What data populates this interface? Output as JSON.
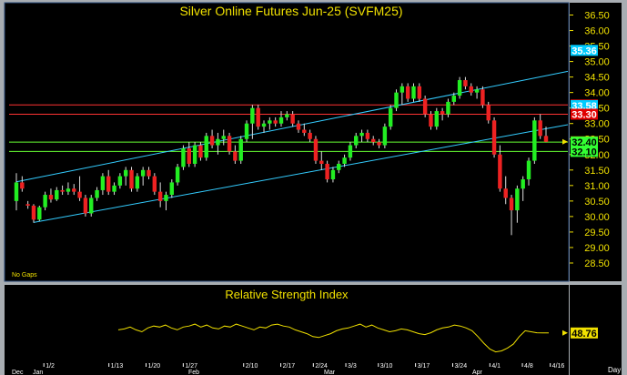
{
  "chart_data": [
    {
      "type": "candlestick",
      "title": "Silver  Online  Futures  Jun-25  (SVFM25)",
      "note": "No Gaps",
      "y_ticks": [
        "36.50",
        "36.00",
        "35.50",
        "35.00",
        "34.50",
        "34.00",
        "33.50",
        "33.00",
        "32.50",
        "32.00",
        "31.50",
        "31.00",
        "30.50",
        "30.00",
        "29.50",
        "29.00",
        "28.50"
      ],
      "ylim": [
        28.0,
        36.75
      ],
      "price_labels": [
        {
          "text": "35.36",
          "value": 35.36,
          "bg": "#00ccff",
          "fg": "#ffffff"
        },
        {
          "text": "33.60",
          "value": 33.6,
          "bg": "#e00000",
          "fg": "#ffffff"
        },
        {
          "text": "33.58",
          "value": 33.58,
          "bg": "#00ccff",
          "fg": "#ffffff"
        },
        {
          "text": "33.30",
          "value": 33.3,
          "bg": "#e00000",
          "fg": "#ffffff"
        },
        {
          "text": "32.41",
          "value": 32.41,
          "bg": "#f0e000",
          "fg": "#000000"
        },
        {
          "text": "32.40",
          "value": 32.4,
          "bg": "#33ff33",
          "fg": "#000000"
        },
        {
          "text": "32.10",
          "value": 32.1,
          "bg": "#33ff33",
          "fg": "#000000"
        }
      ],
      "horizontal_lines": [
        {
          "value": 33.6,
          "color": "#ff3333"
        },
        {
          "value": 33.3,
          "color": "#ff3333"
        },
        {
          "value": 32.4,
          "color": "#66ff33"
        },
        {
          "value": 32.1,
          "color": "#66ff33"
        }
      ],
      "channel_lines": [
        {
          "from": [
            0,
            31.12
          ],
          "to": [
            114,
            35.36
          ],
          "color": "#33ccff"
        },
        {
          "from": [
            3,
            29.81
          ],
          "to": [
            114,
            33.58
          ],
          "color": "#33ccff"
        }
      ],
      "candles": [
        [
          30.5,
          31.4,
          30.2,
          31.1
        ],
        [
          31.1,
          31.3,
          30.8,
          30.9
        ],
        [
          30.4,
          30.5,
          30.25,
          30.35
        ],
        [
          30.35,
          30.4,
          29.8,
          29.9
        ],
        [
          29.9,
          30.35,
          29.85,
          30.3
        ],
        [
          30.3,
          30.8,
          30.2,
          30.7
        ],
        [
          30.7,
          30.9,
          30.45,
          30.55
        ],
        [
          30.55,
          30.95,
          30.5,
          30.85
        ],
        [
          30.85,
          31.0,
          30.7,
          30.8
        ],
        [
          30.8,
          31.1,
          30.7,
          30.9
        ],
        [
          30.9,
          31.05,
          30.7,
          30.8
        ],
        [
          30.8,
          31.3,
          30.5,
          30.6
        ],
        [
          30.6,
          30.7,
          30.0,
          30.1
        ],
        [
          30.1,
          30.7,
          30.0,
          30.6
        ],
        [
          30.6,
          30.95,
          30.5,
          30.85
        ],
        [
          30.85,
          31.4,
          30.7,
          31.3
        ],
        [
          31.3,
          31.5,
          30.7,
          30.8
        ],
        [
          30.8,
          31.1,
          30.7,
          31.0
        ],
        [
          31.0,
          31.4,
          30.9,
          31.3
        ],
        [
          31.3,
          31.6,
          31.0,
          31.5
        ],
        [
          31.5,
          31.6,
          30.8,
          30.9
        ],
        [
          30.9,
          31.4,
          30.8,
          31.3
        ],
        [
          31.3,
          31.6,
          31.0,
          31.5
        ],
        [
          31.5,
          31.6,
          31.2,
          31.3
        ],
        [
          31.3,
          31.4,
          30.7,
          30.8
        ],
        [
          30.8,
          31.1,
          30.3,
          30.5
        ],
        [
          30.5,
          30.8,
          30.2,
          30.7
        ],
        [
          30.7,
          31.2,
          30.6,
          31.1
        ],
        [
          31.1,
          31.7,
          31.0,
          31.6
        ],
        [
          31.6,
          32.3,
          31.5,
          32.2
        ],
        [
          32.2,
          32.4,
          31.6,
          31.7
        ],
        [
          31.7,
          32.4,
          31.6,
          32.3
        ],
        [
          32.3,
          32.4,
          31.8,
          31.9
        ],
        [
          31.9,
          32.7,
          31.8,
          32.6
        ],
        [
          32.6,
          32.8,
          32.2,
          32.3
        ],
        [
          32.3,
          32.7,
          32.0,
          32.5
        ],
        [
          32.5,
          32.8,
          32.3,
          32.6
        ],
        [
          32.6,
          32.7,
          32.0,
          32.1
        ],
        [
          32.1,
          32.3,
          31.7,
          31.8
        ],
        [
          31.8,
          32.6,
          31.7,
          32.5
        ],
        [
          32.5,
          33.1,
          32.4,
          33.0
        ],
        [
          33.0,
          33.6,
          32.5,
          33.5
        ],
        [
          33.5,
          33.6,
          32.8,
          32.9
        ],
        [
          32.9,
          33.1,
          32.7,
          33.0
        ],
        [
          33.0,
          33.2,
          32.8,
          33.1
        ],
        [
          33.1,
          33.2,
          32.9,
          33.0
        ],
        [
          33.0,
          33.4,
          32.9,
          33.2
        ],
        [
          33.2,
          33.4,
          33.1,
          33.3
        ],
        [
          33.3,
          33.4,
          32.9,
          33.0
        ],
        [
          33.0,
          33.1,
          32.7,
          32.8
        ],
        [
          32.8,
          33.0,
          32.6,
          32.7
        ],
        [
          32.7,
          32.8,
          32.4,
          32.5
        ],
        [
          32.5,
          32.6,
          31.7,
          31.8
        ],
        [
          31.8,
          32.1,
          31.5,
          31.7
        ],
        [
          31.7,
          31.8,
          31.1,
          31.2
        ],
        [
          31.2,
          31.6,
          31.1,
          31.5
        ],
        [
          31.5,
          31.8,
          31.4,
          31.7
        ],
        [
          31.7,
          32.0,
          31.6,
          31.9
        ],
        [
          31.9,
          32.4,
          31.8,
          32.3
        ],
        [
          32.3,
          32.7,
          32.2,
          32.6
        ],
        [
          32.6,
          32.8,
          32.4,
          32.7
        ],
        [
          32.7,
          32.8,
          32.4,
          32.5
        ],
        [
          32.5,
          32.6,
          32.3,
          32.4
        ],
        [
          32.4,
          32.5,
          32.2,
          32.3
        ],
        [
          32.3,
          33.0,
          32.2,
          32.9
        ],
        [
          32.9,
          33.6,
          32.8,
          33.5
        ],
        [
          33.5,
          34.1,
          33.4,
          34.0
        ],
        [
          34.0,
          34.3,
          33.6,
          34.2
        ],
        [
          34.2,
          34.3,
          33.7,
          33.8
        ],
        [
          33.8,
          34.3,
          33.7,
          34.2
        ],
        [
          34.2,
          34.3,
          33.7,
          33.8
        ],
        [
          33.8,
          33.9,
          33.2,
          33.3
        ],
        [
          33.3,
          33.4,
          32.8,
          32.9
        ],
        [
          32.9,
          33.5,
          32.8,
          33.4
        ],
        [
          33.4,
          33.5,
          33.1,
          33.3
        ],
        [
          33.3,
          33.8,
          33.2,
          33.7
        ],
        [
          33.7,
          34.0,
          33.6,
          33.9
        ],
        [
          33.9,
          34.5,
          33.8,
          34.4
        ],
        [
          34.4,
          34.5,
          34.1,
          34.2
        ],
        [
          34.2,
          34.3,
          33.9,
          34.0
        ],
        [
          34.0,
          34.2,
          33.8,
          34.1
        ],
        [
          34.1,
          34.2,
          33.5,
          33.6
        ],
        [
          33.6,
          33.7,
          33.0,
          33.1
        ],
        [
          33.1,
          33.2,
          31.9,
          32.0
        ],
        [
          32.0,
          32.3,
          30.8,
          30.9
        ],
        [
          30.9,
          31.3,
          30.4,
          30.6
        ],
        [
          30.6,
          30.7,
          29.4,
          30.2
        ],
        [
          30.2,
          31.0,
          29.8,
          30.9
        ],
        [
          30.9,
          31.3,
          30.5,
          31.2
        ],
        [
          31.2,
          31.9,
          31.0,
          31.8
        ],
        [
          31.8,
          33.2,
          31.7,
          33.1
        ],
        [
          33.1,
          33.3,
          32.5,
          32.6
        ],
        [
          32.6,
          32.9,
          32.4,
          32.41
        ]
      ]
    },
    {
      "type": "line",
      "title": "Relative  Strength  Index",
      "last_value_label": "48.76",
      "ylim": [
        20,
        80
      ],
      "values": [
        52,
        53,
        55,
        52,
        50,
        54,
        56,
        55,
        57,
        54,
        52,
        55,
        56,
        58,
        55,
        57,
        54,
        53,
        56,
        55,
        58,
        56,
        54,
        52,
        55,
        54,
        57,
        58,
        56,
        55,
        52,
        50,
        48,
        45,
        44,
        46,
        48,
        51,
        53,
        54,
        56,
        58,
        55,
        57,
        54,
        52,
        50,
        51,
        53,
        52,
        50,
        48,
        47,
        49,
        52,
        54,
        55,
        57,
        56,
        54,
        51,
        45,
        38,
        32,
        29,
        30,
        33,
        37,
        45,
        51,
        50,
        49,
        48.76,
        48.76
      ]
    }
  ],
  "x_axis": {
    "ticks": [
      "1/2",
      "1/13",
      "1/20",
      "1/27",
      "2/10",
      "2/17",
      "2/24",
      "3/3",
      "3/10",
      "3/17",
      "3/24",
      "4/1",
      "4/8",
      "4/16"
    ],
    "months": [
      "Dec",
      "Jan",
      "Feb",
      "Mar",
      "Apr"
    ],
    "period": "Day"
  }
}
